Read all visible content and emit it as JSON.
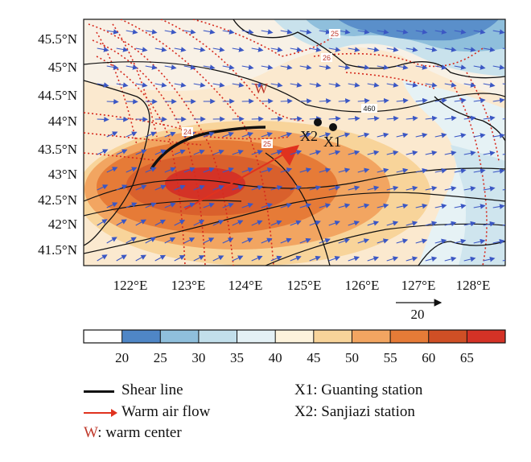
{
  "map": {
    "lat_labels": [
      "45.5°N",
      "45°N",
      "44.5°N",
      "44°N",
      "43.5°N",
      "43°N",
      "42.5°N",
      "42°N",
      "41.5°N"
    ],
    "lon_labels": [
      "122°E",
      "123°E",
      "124°E",
      "125°E",
      "126°E",
      "127°E",
      "128°E"
    ],
    "reference_vector_label": "20",
    "contour_labels": {
      "upper_25": "25",
      "upper_26": "26",
      "left_24": "24",
      "middle_25": "25",
      "geopotential_460": "460"
    },
    "warm_center_marker": "W",
    "stations": [
      {
        "id": "x2",
        "label": "X2"
      },
      {
        "id": "x1",
        "label": "X1"
      }
    ]
  },
  "colorbar": {
    "tick_labels": [
      "20",
      "25",
      "30",
      "35",
      "40",
      "45",
      "50",
      "55",
      "60",
      "65"
    ],
    "colors": [
      "#ffffff",
      "#4f86c6",
      "#8fbfdc",
      "#c2dfeb",
      "#e4f1f5",
      "#fdf3dc",
      "#f8d49a",
      "#f2a561",
      "#e67b37",
      "#cf4f25",
      "#d43226"
    ]
  },
  "legend": {
    "shear_line": "Shear line",
    "warm_air_flow": "Warm air flow",
    "warm_center_letter": "W",
    "warm_center_text": ": warm center",
    "x1_station": "X1: Guanting station",
    "x2_station": "X2: Sanjiazi station"
  }
}
